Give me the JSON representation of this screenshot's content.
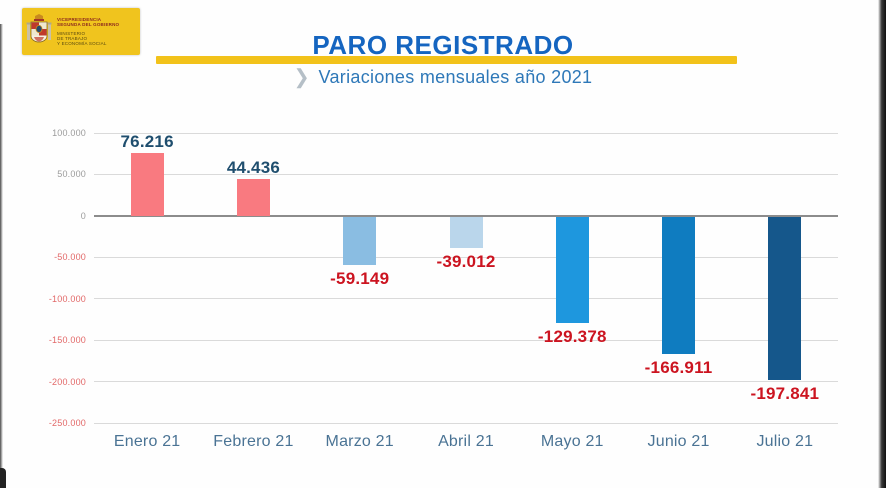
{
  "logo": {
    "line1": "VICEPRESIDENCIA",
    "line2": "SEGUNDA DEL GOBIERNO",
    "line3": "MINISTERIO",
    "line4": "DE TRABAJO",
    "line5": "Y ECONOMÍA SOCIAL",
    "bg_color": "#f0c41e"
  },
  "header": {
    "title": "PARO REGISTRADO",
    "subtitle": "Variaciones mensuales año 2021",
    "title_color": "#1565c0",
    "subtitle_color": "#2e78b8",
    "underline_color": "#f2c21a",
    "chevron_icon": "❯"
  },
  "chart_data": {
    "type": "bar",
    "title": "PARO REGISTRADO",
    "subtitle": "Variaciones mensuales año 2021",
    "categories": [
      "Enero 21",
      "Febrero 21",
      "Marzo 21",
      "Abril 21",
      "Mayo 21",
      "Junio 21",
      "Julio 21"
    ],
    "values": [
      76216,
      44436,
      -59149,
      -39012,
      -129378,
      -166911,
      -197841
    ],
    "value_labels": [
      "76.216",
      "44.436",
      "-59.149",
      "-39.012",
      "-129.378",
      "-166.911",
      "-197.841"
    ],
    "bar_colors": [
      "#f97a80",
      "#f97a80",
      "#8abde2",
      "#bad6eb",
      "#1e97de",
      "#0f7cc0",
      "#15578b"
    ],
    "ylim": [
      -250000,
      100000
    ],
    "ytick_values": [
      100000,
      50000,
      0,
      -50000,
      -100000,
      -150000,
      -200000,
      -250000
    ],
    "ytick_labels": [
      "100.000",
      "50.000",
      "0",
      "-50.000",
      "-100.000",
      "-150.000",
      "-200.000",
      "-250.000"
    ],
    "grid": true,
    "legend": false,
    "positive_label_color": "#1f4e6e",
    "negative_label_color": "#cc1420",
    "ytick_positive_color": "#9b9b9b",
    "ytick_negative_color": "#e26868",
    "xlabel_color": "#4a7394",
    "gridline_color": "#dadada",
    "zero_line_color": "#8c8c8c"
  }
}
